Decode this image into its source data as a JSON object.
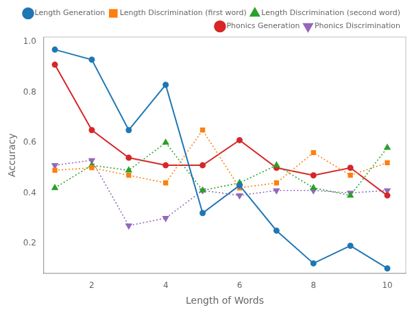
{
  "chart_data": {
    "type": "line",
    "x": [
      1,
      2,
      3,
      4,
      5,
      6,
      7,
      8,
      9,
      10
    ],
    "series": [
      {
        "name": "Length Generation",
        "color": "#1f77b4",
        "marker": "circle",
        "line_style": "solid",
        "values": [
          0.97,
          0.93,
          0.65,
          0.83,
          0.32,
          0.43,
          0.25,
          0.12,
          0.19,
          0.1
        ]
      },
      {
        "name": "Length Discrimination (first word)",
        "color": "#ff7f0e",
        "marker": "square",
        "line_style": "dotted",
        "values": [
          0.49,
          0.5,
          0.47,
          0.44,
          0.65,
          0.42,
          0.44,
          0.56,
          0.47,
          0.52
        ]
      },
      {
        "name": "Length Discrimination (second word)",
        "color": "#2ca02c",
        "marker": "triangle_up",
        "line_style": "dotted",
        "values": [
          0.42,
          0.51,
          0.49,
          0.6,
          0.41,
          0.44,
          0.51,
          0.42,
          0.39,
          0.58
        ]
      },
      {
        "name": "Phonics Generation",
        "color": "#d62728",
        "marker": "circle",
        "line_style": "solid",
        "values": [
          0.91,
          0.65,
          0.54,
          0.51,
          0.51,
          0.61,
          0.5,
          0.47,
          0.5,
          0.39
        ]
      },
      {
        "name": "Phonics Discrimination",
        "color": "#9467bd",
        "marker": "triangle_down",
        "line_style": "dotted",
        "values": [
          0.51,
          0.53,
          0.27,
          0.3,
          0.41,
          0.39,
          0.41,
          0.41,
          0.4,
          0.41
        ]
      }
    ],
    "xlabel": "Length of Words",
    "ylabel": "Accuracy",
    "xlim": [
      0.7,
      10.5
    ],
    "ylim": [
      0.08,
      1.02
    ],
    "xticks": [
      2,
      4,
      6,
      8,
      10
    ],
    "yticks": [
      0.2,
      0.4,
      0.6,
      0.8,
      {
        "value": 1.0,
        "label": "1.0"
      }
    ],
    "grid": false,
    "legend": "upper right"
  }
}
